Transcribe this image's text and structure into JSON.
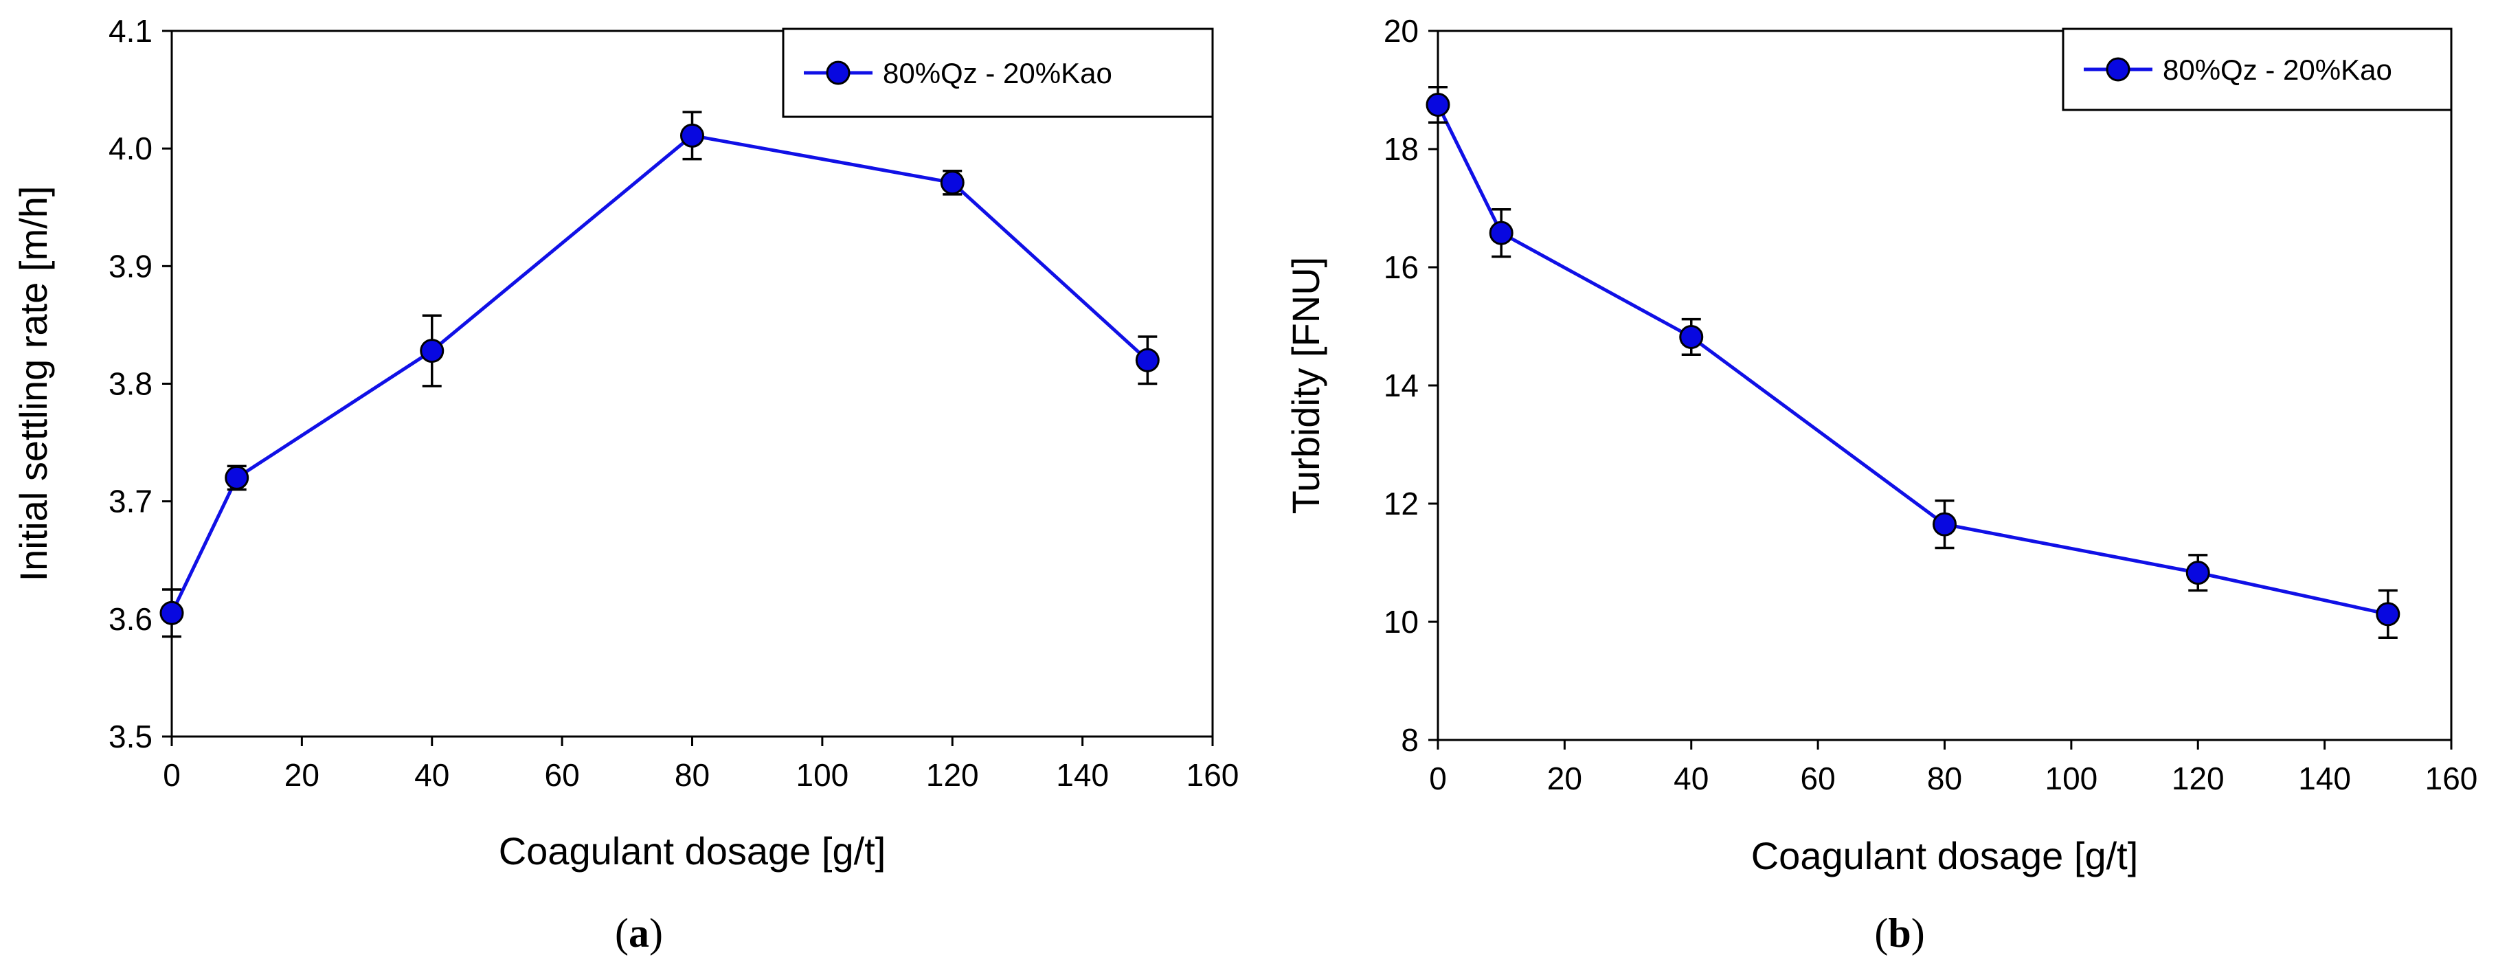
{
  "chart_data": [
    {
      "type": "line",
      "panel_label": "(a)",
      "panel_label_bold": "a",
      "xlabel": "Coagulant dosage [g/t]",
      "ylabel": "Initial settling rate [m/h]",
      "xlim": [
        0,
        160
      ],
      "ylim": [
        3.5,
        4.1
      ],
      "xticks": [
        0,
        20,
        40,
        60,
        80,
        100,
        120,
        140,
        160
      ],
      "yticks": [
        3.5,
        3.6,
        3.7,
        3.8,
        3.9,
        4.0,
        4.1
      ],
      "ytick_labels": [
        "3.5",
        "3.6",
        "3.7",
        "3.8",
        "3.9",
        "4.0",
        "4.1"
      ],
      "legend_position": "top-right",
      "grid": false,
      "series": [
        {
          "name": "80%Qz - 20%Kao",
          "color": "#0808e0",
          "x": [
            0,
            10,
            40,
            80,
            120,
            150
          ],
          "y": [
            3.605,
            3.72,
            3.828,
            4.011,
            3.971,
            3.82
          ],
          "error": [
            0.02,
            0.01,
            0.03,
            0.02,
            0.01,
            0.02
          ]
        }
      ]
    },
    {
      "type": "line",
      "panel_label": "(b)",
      "panel_label_bold": "b",
      "xlabel": "Coagulant dosage [g/t]",
      "ylabel": "Turbidity [FNU]",
      "xlim": [
        0,
        160
      ],
      "ylim": [
        8,
        20
      ],
      "xticks": [
        0,
        20,
        40,
        60,
        80,
        100,
        120,
        140,
        160
      ],
      "yticks": [
        8,
        10,
        12,
        14,
        16,
        18,
        20
      ],
      "ytick_labels": [
        "8",
        "10",
        "12",
        "14",
        "16",
        "18",
        "20"
      ],
      "legend_position": "top-right",
      "grid": false,
      "series": [
        {
          "name": "80%Qz - 20%Kao",
          "color": "#0808e0",
          "x": [
            0,
            10,
            40,
            80,
            120,
            150
          ],
          "y": [
            18.75,
            16.58,
            14.82,
            11.65,
            10.83,
            10.13
          ],
          "error": [
            0.3,
            0.4,
            0.3,
            0.4,
            0.3,
            0.4
          ]
        }
      ]
    }
  ]
}
